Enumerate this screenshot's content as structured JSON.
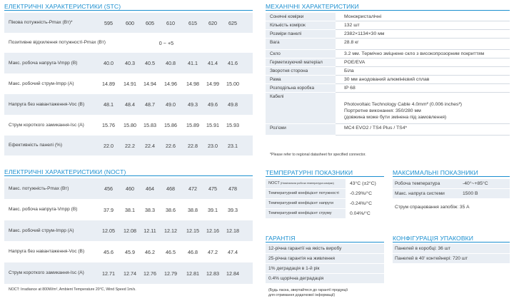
{
  "stc": {
    "title": "ЕЛЕКТРИЧНІ ХАРАКТЕРИСТИКИ (STC)",
    "rows": [
      {
        "label": "Пікова потужність-Pmax (Вт)*",
        "values": [
          "595",
          "600",
          "605",
          "610",
          "615",
          "620",
          "625"
        ]
      },
      {
        "label": "Позитивне відхилення потужності-Pmax (Вт)",
        "values": [],
        "merged": "0 ~ +5"
      },
      {
        "label": "Макс. робоча напруга-Vmpp (В)",
        "values": [
          "40.0",
          "40.3",
          "40.5",
          "40.8",
          "41.1",
          "41.4",
          "41.6"
        ]
      },
      {
        "label": "Макс. робочий струм-Impp (А)",
        "values": [
          "14.89",
          "14.91",
          "14.94",
          "14.96",
          "14.98",
          "14.99",
          "15.00"
        ]
      },
      {
        "label": "Напруга без навантаження-Voc (В)",
        "values": [
          "48.1",
          "48.4",
          "48.7",
          "49.0",
          "49.3",
          "49.6",
          "49.8"
        ]
      },
      {
        "label": "Струм короткого замикання-Isc (А)",
        "values": [
          "15.76",
          "15.80",
          "15.83",
          "15.86",
          "15.89",
          "15.91",
          "15.93"
        ]
      },
      {
        "label": "Ефективність панелі (%)",
        "values": [
          "22.0",
          "22.2",
          "22.4",
          "22.6",
          "22.8",
          "23.0",
          "23.1"
        ]
      }
    ]
  },
  "noct": {
    "title": "ЕЛЕКТРИЧНІ ХАРАКТЕРИСТИКИ (NOCT)",
    "rows": [
      {
        "label": "Макс. потужність-Pmax (Вт)",
        "values": [
          "456",
          "460",
          "464",
          "468",
          "472",
          "475",
          "478"
        ]
      },
      {
        "label": "Макс. робоча напруга-Vmpp (В)",
        "values": [
          "37.9",
          "38.1",
          "38.3",
          "38.6",
          "38.8",
          "39.1",
          "39.3"
        ]
      },
      {
        "label": "Макс. робочий струм-Impp (А)",
        "values": [
          "12.05",
          "12.08",
          "12.11",
          "12.12",
          "12.15",
          "12.16",
          "12.18"
        ]
      },
      {
        "label": "Напруга без навантаження-Voc (В)",
        "values": [
          "45.6",
          "45.9",
          "46.2",
          "46.5",
          "46.8",
          "47.2",
          "47.4"
        ]
      },
      {
        "label": "Струм короткого замикання-Isc (А)",
        "values": [
          "12.71",
          "12.74",
          "12.76",
          "12.79",
          "12.81",
          "12.83",
          "12.84"
        ]
      }
    ],
    "note": "NOCT: Irradiance at 800W/m², Ambient Temperature 20°C, Wind Speed 1m/s."
  },
  "mech": {
    "title": "МЕХАНІЧНІ ХАРАКТЕРИСТИКИ",
    "rows": [
      {
        "label": "Сонячні комірки",
        "value": "Монокристалічні"
      },
      {
        "label": "Кількість комірок",
        "value": "132 шт"
      },
      {
        "label": "Розміри панелі",
        "value": "2382×1134×30 мм"
      },
      {
        "label": "Вага",
        "value": "28.8 кг"
      },
      {
        "label": "Скло",
        "value": "3.2 мм. Термічно зміцнене скло з високопрозорним покриттям"
      },
      {
        "label": "Герметизуючий матеріал",
        "value": "POE/EVA"
      },
      {
        "label": "Зворотня сторона",
        "value": "Біла"
      },
      {
        "label": "Рама",
        "value": "30 мм анодований алюмінієвий сплав"
      },
      {
        "label": "Розподільна коробка",
        "value": "IP 68"
      },
      {
        "label": "Кабелі",
        "value": "Photovoltaic Technology Cable 4.0mm² (0.006 inches²)",
        "value2": "Портретне виконання: 350/280 мм",
        "value3": "(довжина може бути змінена під замовлення)"
      },
      {
        "label": "Роз'єми",
        "value": "MC4 EVO2 / TS4 Plus / TS4*"
      }
    ],
    "note": "*Please refer to regional datasheet for specified connector."
  },
  "temp": {
    "title": "ТЕМПЕРАТУРНІ ПОКАЗНИКИ",
    "rows": [
      {
        "label": "NOCT",
        "sublabel": "(Номінальна робоча температура комірки)",
        "value": "43°C (±2°C)"
      },
      {
        "label": "Температурний коефіцієнт потужності",
        "value": "-0.29%/°C"
      },
      {
        "label": "Температурний коефіцієнт напруги",
        "value": "-0.24%/°C"
      },
      {
        "label": "Температурний коефіцієнт струму",
        "value": "0.04%/°C"
      }
    ]
  },
  "max": {
    "title": "МАКСИМАЛЬНІ ПОКАЗНИКИ",
    "rows": [
      {
        "label": "Робоча температура",
        "value": "-40°~+85°C"
      },
      {
        "label": "Макс. напруга системи",
        "value": "1500 В"
      },
      {
        "label": "Струм спрацювання запобіж: 35 А",
        "value": ""
      }
    ]
  },
  "warranty": {
    "title": "ГАРАНТІЯ",
    "rows": [
      "12-річна гарантії на якість виробу",
      "25-річна гарантія на живлення",
      "1% деградація в 1-й рік",
      "0.4% щорічна деградація"
    ],
    "note1": "(Будь ласка, звертайтеся до гарантії продукції",
    "note2": "для отримання додаткової інформації)"
  },
  "pack": {
    "title": "КОНФІГУРАЦІЯ УПАКОВКИ",
    "rows": [
      "Панелей в коробці: 36 шт",
      "Панелей в 40' контейнері: 720 шт"
    ]
  },
  "colors": {
    "accent": "#1b8fd0",
    "stripe": "#e9eef4"
  }
}
